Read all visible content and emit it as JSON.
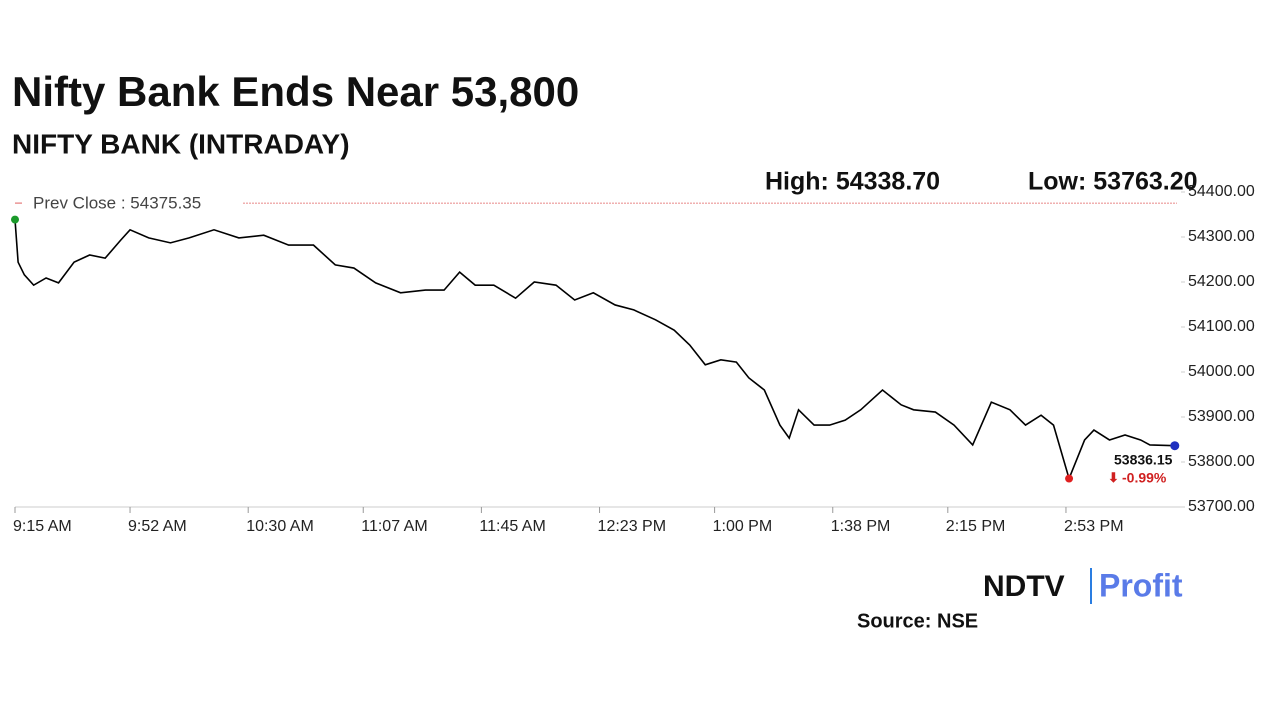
{
  "chart_data": {
    "type": "line",
    "title": "Nifty Bank Ends Near 53,800",
    "subtitle": "NIFTY BANK (INTRADAY)",
    "high_label": "High: 54338.70",
    "low_label": "Low: 53763.20",
    "prev_close": {
      "value": 54375.35,
      "label": "Prev Close : 54375.35"
    },
    "last_label": "53836.15",
    "change_label": "-0.99%",
    "brand": [
      "NDTV",
      "Profit"
    ],
    "source": "Source: NSE",
    "x": [
      "9:15 AM",
      "9:16 AM",
      "9:18 AM",
      "9:21 AM",
      "9:25 AM",
      "9:29 AM",
      "9:34 AM",
      "9:39 AM",
      "9:44 AM",
      "9:49 AM",
      "9:52 AM",
      "9:58 AM",
      "10:05 AM",
      "10:11 AM",
      "10:19 AM",
      "10:27 AM",
      "10:35 AM",
      "10:43 AM",
      "10:51 AM",
      "10:58 AM",
      "11:04 AM",
      "11:11 AM",
      "11:19 AM",
      "11:27 AM",
      "11:33 AM",
      "11:38 AM",
      "11:43 AM",
      "11:49 AM",
      "11:56 AM",
      "12:02 PM",
      "12:09 PM",
      "12:15 PM",
      "12:21 PM",
      "12:28 PM",
      "12:34 PM",
      "12:41 PM",
      "12:47 PM",
      "12:52 PM",
      "12:57 PM",
      "1:02 PM",
      "1:07 PM",
      "1:11 PM",
      "1:16 PM",
      "1:21 PM",
      "1:24 PM",
      "1:27 PM",
      "1:32 PM",
      "1:37 PM",
      "1:42 PM",
      "1:47 PM",
      "1:54 PM",
      "2:00 PM",
      "2:04 PM",
      "2:11 PM",
      "2:17 PM",
      "2:23 PM",
      "2:29 PM",
      "2:35 PM",
      "2:40 PM",
      "2:45 PM",
      "2:49 PM",
      "2:54 PM",
      "2:59 PM",
      "3:02 PM",
      "3:07 PM",
      "3:12 PM",
      "3:17 PM",
      "3:20 PM",
      "3:28 PM"
    ],
    "series": [
      {
        "name": "NIFTY BANK",
        "color": "#000000",
        "values": [
          54338.7,
          54244,
          54216,
          54193,
          54209,
          54198,
          54244,
          54260,
          54253,
          54293,
          54316,
          54298,
          54287,
          54298,
          54316,
          54298,
          54304,
          54282,
          54282,
          54238,
          54231,
          54198,
          54176,
          54182,
          54182,
          54222,
          54193,
          54193,
          54164,
          54200,
          54193,
          54160,
          54176,
          54149,
          54138,
          54116,
          54093,
          54060,
          54016,
          54027,
          54022,
          53987,
          53960,
          53882,
          53853,
          53916,
          53882,
          53882,
          53893,
          53916,
          53960,
          53927,
          53916,
          53911,
          53882,
          53838,
          53933,
          53916,
          53882,
          53904,
          53882,
          53763.2,
          53849,
          53871,
          53849,
          53860,
          53849,
          53838,
          53836.15
        ]
      }
    ],
    "xlim": [
      "9:15 AM",
      "3:30 PM"
    ],
    "xticks": [
      "9:15 AM",
      "9:52 AM",
      "10:30 AM",
      "11:07 AM",
      "11:45 AM",
      "12:23 PM",
      "1:00 PM",
      "1:38 PM",
      "2:15 PM",
      "2:53 PM"
    ],
    "ylim": [
      53700,
      54400
    ],
    "yticks": [
      {
        "value": 53700,
        "label": "53700.00"
      },
      {
        "value": 53800,
        "label": "53800.00"
      },
      {
        "value": 53900,
        "label": "53900.00"
      },
      {
        "value": 54000,
        "label": "54000.00"
      },
      {
        "value": 54100,
        "label": "54100.00"
      },
      {
        "value": 54200,
        "label": "54200.00"
      },
      {
        "value": 54300,
        "label": "54300.00"
      },
      {
        "value": 54400,
        "label": "54400.00"
      }
    ],
    "grid": false
  }
}
